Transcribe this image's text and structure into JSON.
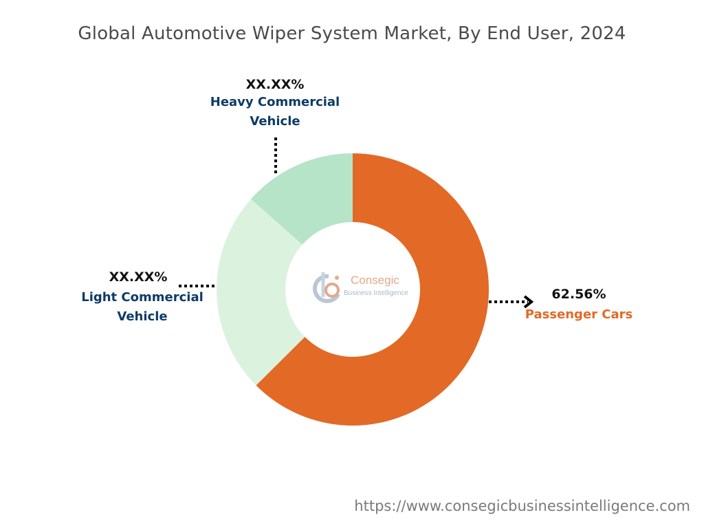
{
  "chart_data": {
    "type": "pie",
    "title": "Global Automotive Wiper System Market, By End User, 2024",
    "slices": [
      {
        "label": "Passenger Cars",
        "value": 62.56,
        "value_label": "62.56%",
        "color": "#e26a26"
      },
      {
        "label": "Light Commercial Vehicle",
        "value": 24.0,
        "value_label": "XX.XX%",
        "color": "#dbf3de"
      },
      {
        "label": "Heavy Commercial Vehicle",
        "value": 13.44,
        "value_label": "XX.XX%",
        "color": "#b6e4c8"
      }
    ],
    "label_colors": {
      "Passenger Cars": "#e26a26",
      "Light Commercial Vehicle": "#0d3b66",
      "Heavy Commercial Vehicle": "#0d3b66"
    }
  },
  "labels": {
    "passenger": {
      "value": "62.56%",
      "name": "Passenger Cars"
    },
    "light": {
      "value": "XX.XX%",
      "name_line1": "Light Commercial",
      "name_line2": "Vehicle"
    },
    "heavy": {
      "value": "XX.XX%",
      "name_line1": "Heavy Commercial",
      "name_line2": "Vehicle"
    }
  },
  "logo": {
    "name": "Consegic",
    "subtitle": "Business Intelligence",
    "icon": "consegic-logo-icon"
  },
  "footer": {
    "url": "https://www.consegicbusinessintelligence.com"
  }
}
